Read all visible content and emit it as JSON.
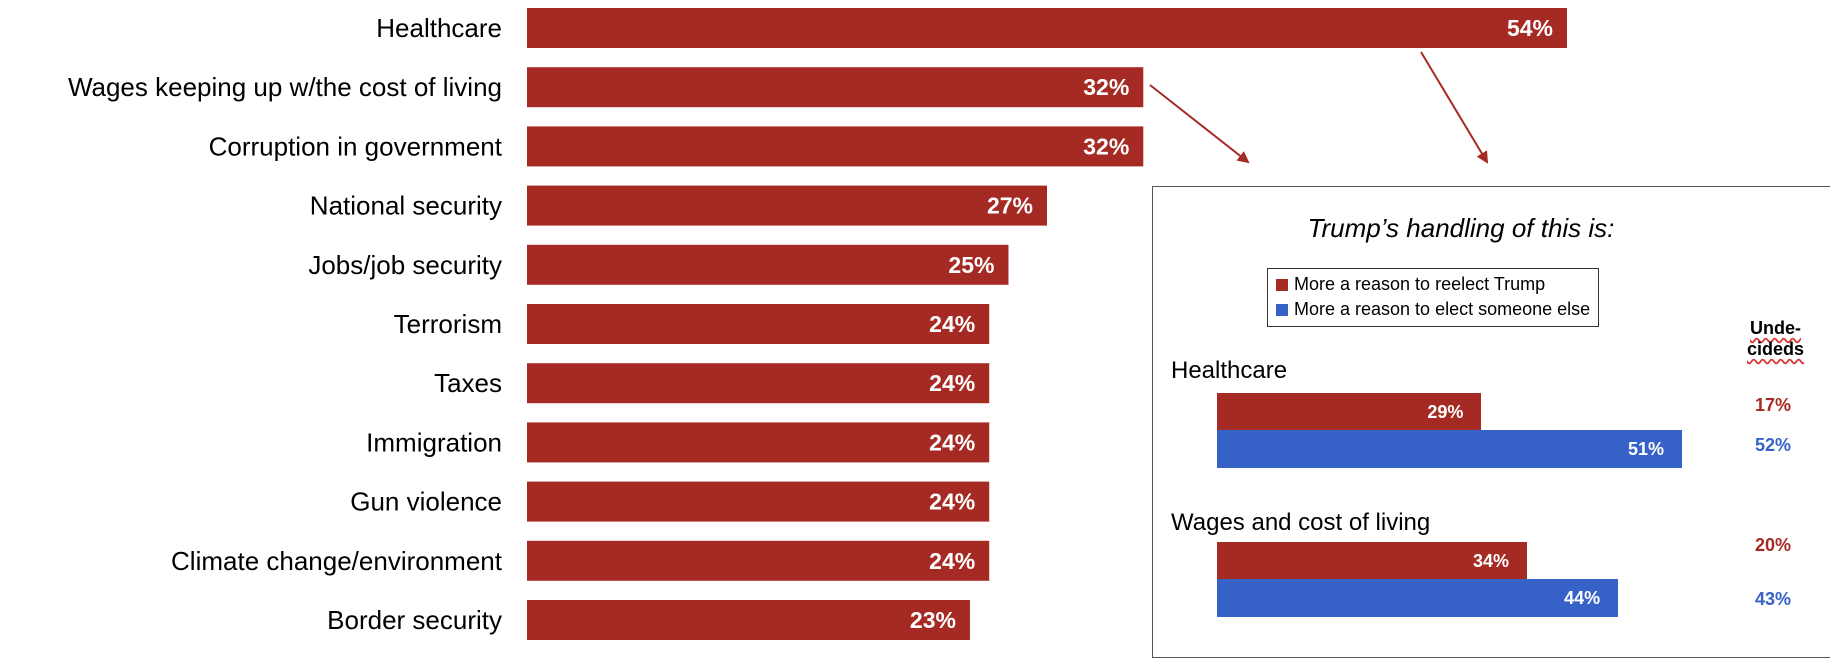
{
  "colors": {
    "red": "#a62a24",
    "blue": "#3662c8"
  },
  "chart_data": [
    {
      "type": "bar",
      "orientation": "horizontal",
      "categories": [
        "Healthcare",
        "Wages keeping up w/the cost of living",
        "Corruption in government",
        "National security",
        "Jobs/job security",
        "Terrorism",
        "Taxes",
        "Immigration",
        "Gun violence",
        "Climate change/environment",
        "Border security"
      ],
      "values": [
        54,
        32,
        32,
        27,
        25,
        24,
        24,
        24,
        24,
        24,
        23
      ],
      "value_labels": [
        "54%",
        "32%",
        "32%",
        "27%",
        "25%",
        "24%",
        "24%",
        "24%",
        "24%",
        "24%",
        "23%"
      ],
      "xlim": [
        0,
        60
      ],
      "grid": false
    },
    {
      "type": "bar",
      "orientation": "horizontal",
      "title": "Trump’s handling of this is:",
      "categories": [
        "Healthcare",
        "Wages and cost of living"
      ],
      "series": [
        {
          "name": "More a reason to reelect Trump",
          "values": [
            29,
            34
          ],
          "value_labels": [
            "29%",
            "34%"
          ],
          "color": "#a62a24"
        },
        {
          "name": "More a reason to elect someone else",
          "values": [
            51,
            44
          ],
          "value_labels": [
            "51%",
            "44%"
          ],
          "color": "#3662c8"
        }
      ],
      "undecided_header": "Unde-cideds",
      "undecided_header_lines": [
        "Unde-",
        "cideds"
      ],
      "undecideds": [
        {
          "reelect": "17%",
          "someone_else": "52%"
        },
        {
          "reelect": "20%",
          "someone_else": "43%"
        }
      ],
      "legend_position": "top",
      "grid": false
    }
  ]
}
